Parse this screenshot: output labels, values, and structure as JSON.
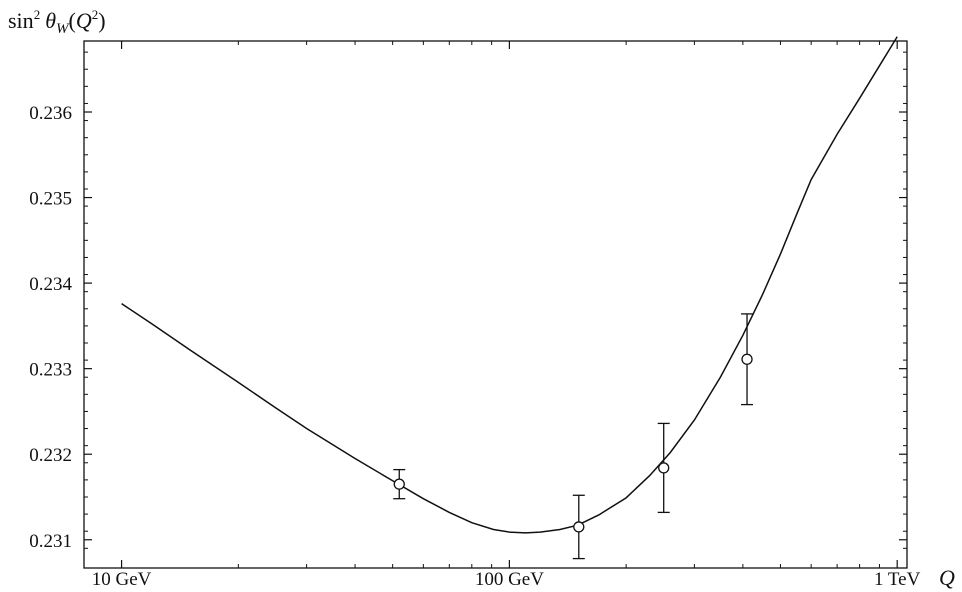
{
  "chart_data": {
    "type": "line",
    "title": "",
    "ylabel": {
      "func": "sin",
      "power": "2",
      "theta": "θ",
      "sub": "W",
      "open": "(",
      "var": "Q",
      "power2": "2",
      "close": ")"
    },
    "xlabel": "Q",
    "x_scale": "log",
    "x_units": "GeV",
    "xlim": [
      8.0,
      1060.0
    ],
    "ylim": [
      0.23067,
      0.23683
    ],
    "x_ticks": [
      {
        "value": 10,
        "label": "10 GeV"
      },
      {
        "value": 100,
        "label": "100 GeV"
      },
      {
        "value": 1000,
        "label": "1 TeV"
      }
    ],
    "y_ticks": [
      {
        "value": 0.231,
        "label": "0.231"
      },
      {
        "value": 0.232,
        "label": "0.232"
      },
      {
        "value": 0.233,
        "label": "0.233"
      },
      {
        "value": 0.234,
        "label": "0.234"
      },
      {
        "value": 0.235,
        "label": "0.235"
      },
      {
        "value": 0.236,
        "label": "0.236"
      }
    ],
    "grid": false,
    "series": [
      {
        "kind": "line",
        "x": [
          10,
          12,
          15,
          20,
          25,
          30,
          40,
          50,
          60,
          70,
          80,
          91,
          100,
          110,
          120,
          135,
          150,
          170,
          200,
          230,
          260,
          300,
          350,
          400,
          450,
          500,
          550,
          600,
          700,
          800,
          900,
          1000
        ],
        "y": [
          0.23376,
          0.23352,
          0.23322,
          0.23284,
          0.23254,
          0.2323,
          0.23195,
          0.23169,
          0.23148,
          0.23132,
          0.2312,
          0.23112,
          0.23109,
          0.23108,
          0.23109,
          0.23112,
          0.23117,
          0.23129,
          0.23149,
          0.23175,
          0.23202,
          0.2324,
          0.2329,
          0.23339,
          0.23387,
          0.23434,
          0.2348,
          0.23521,
          0.23574,
          0.23616,
          0.23654,
          0.23688
        ]
      },
      {
        "kind": "points_with_errors",
        "points": [
          {
            "x": 52,
            "y": 0.23165,
            "err": 0.00017
          },
          {
            "x": 151,
            "y": 0.23115,
            "err": 0.00037
          },
          {
            "x": 250,
            "y": 0.23184,
            "err": 0.00052
          },
          {
            "x": 410,
            "y": 0.23311,
            "err": 0.00053
          }
        ]
      }
    ]
  }
}
